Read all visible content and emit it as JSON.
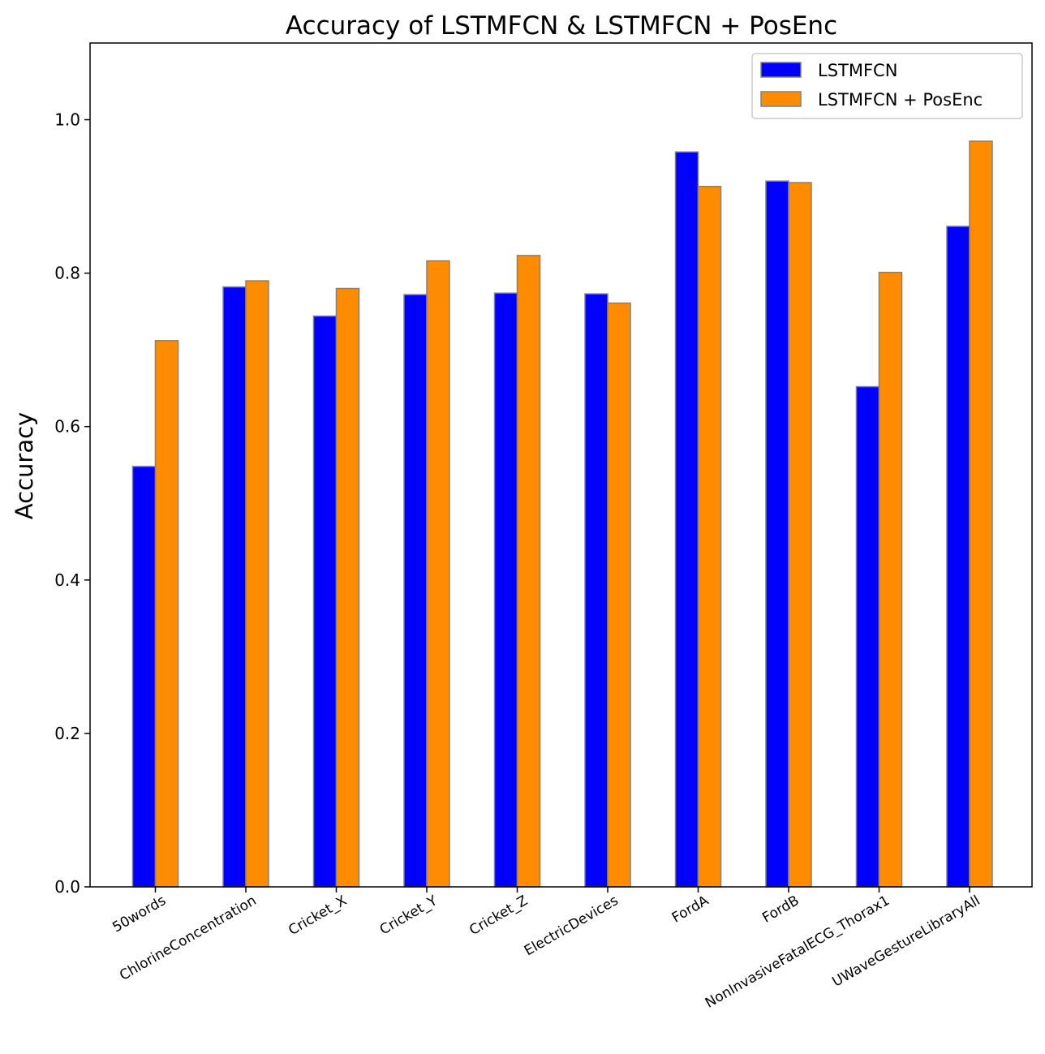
{
  "chart_data": {
    "type": "bar",
    "title": "Accuracy of LSTMFCN & LSTMFCN + PosEnc",
    "xlabel": "",
    "ylabel": "Accuracy",
    "ylim": [
      0,
      1.1
    ],
    "yticks": [
      "0.0",
      "0.2",
      "0.4",
      "0.6",
      "0.8",
      "1.0"
    ],
    "grid": false,
    "legend_position": "top-right",
    "categories": [
      "50words",
      "ChlorineConcentration",
      "Cricket_X",
      "Cricket_Y",
      "Cricket_Z",
      "ElectricDevices",
      "FordA",
      "FordB",
      "NonInvasiveFatalECG_Thorax1",
      "UWaveGestureLibraryAll"
    ],
    "series": [
      {
        "name": "LSTMFCN",
        "color": "#0000ff",
        "values": [
          0.548,
          0.782,
          0.744,
          0.772,
          0.774,
          0.773,
          0.958,
          0.92,
          0.652,
          0.861
        ]
      },
      {
        "name": "LSTMFCN + PosEnc",
        "color": "#ff8c00",
        "values": [
          0.712,
          0.79,
          0.78,
          0.816,
          0.823,
          0.761,
          0.913,
          0.918,
          0.801,
          0.972
        ]
      }
    ],
    "bar_edge_color": "#808080"
  }
}
